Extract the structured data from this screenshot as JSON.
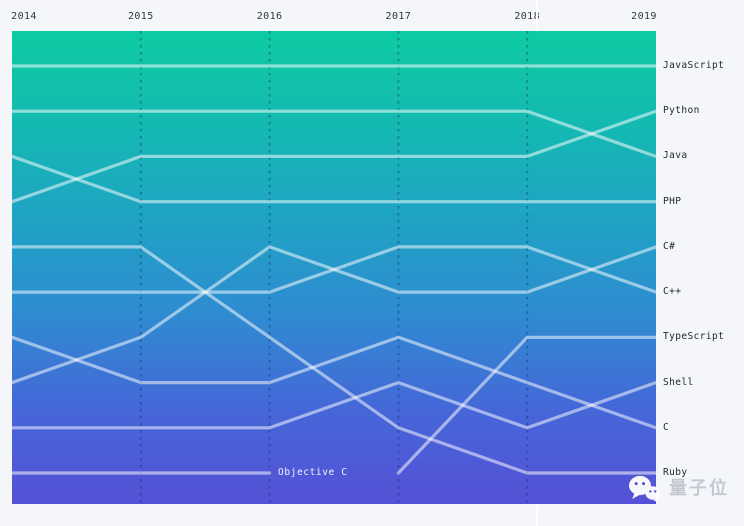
{
  "chart_data": {
    "type": "line",
    "subtype": "bump-ranking",
    "title": "",
    "years": [
      "2014",
      "2015",
      "2016",
      "2017",
      "2018",
      "2019"
    ],
    "rank_min": 1,
    "rank_max": 10,
    "rank_axis_direction": "1 at top, 10 at bottom",
    "grid": "dashed-vertical-at-inner-years",
    "legend_position": "right",
    "series": [
      {
        "name": "JavaScript",
        "ranks": [
          1,
          1,
          1,
          1,
          1,
          1
        ]
      },
      {
        "name": "Python",
        "ranks": [
          4,
          3,
          3,
          3,
          3,
          2
        ]
      },
      {
        "name": "Java",
        "ranks": [
          2,
          2,
          2,
          2,
          2,
          3
        ]
      },
      {
        "name": "PHP",
        "ranks": [
          3,
          4,
          4,
          4,
          4,
          4
        ]
      },
      {
        "name": "C#",
        "ranks": [
          8,
          7,
          5,
          6,
          6,
          5
        ]
      },
      {
        "name": "C++",
        "ranks": [
          6,
          6,
          6,
          5,
          5,
          6
        ]
      },
      {
        "name": "TypeScript",
        "ranks": [
          null,
          null,
          null,
          10,
          7,
          7
        ]
      },
      {
        "name": "Shell",
        "ranks": [
          9,
          9,
          9,
          8,
          9,
          8
        ]
      },
      {
        "name": "C",
        "ranks": [
          7,
          8,
          8,
          7,
          8,
          9
        ]
      },
      {
        "name": "Ruby",
        "ranks": [
          5,
          5,
          7,
          9,
          10,
          10
        ]
      },
      {
        "name": "Objective C",
        "ranks": [
          10,
          10,
          10,
          null,
          null,
          null
        ]
      }
    ],
    "right_labels": [
      "JavaScript",
      "Python",
      "Java",
      "PHP",
      "C#",
      "C++",
      "TypeScript",
      "Shell",
      "C",
      "Ruby"
    ],
    "annotation": {
      "text": "Objective C",
      "year": "2016",
      "rank": 10
    },
    "colors": {
      "gradient_top": "#0ecba1",
      "gradient_mid": "#2f8bd1",
      "gradient_bottom": "#5551d6",
      "line": "#ffffff",
      "gridline": "#0d3a6e",
      "axis_label": "#31373d",
      "right_label": "#23282e",
      "inline_label": "#ffffff",
      "page_background": "#f4f6fa"
    }
  },
  "watermark": {
    "text": "量子位",
    "icon": "wechat-icon"
  }
}
